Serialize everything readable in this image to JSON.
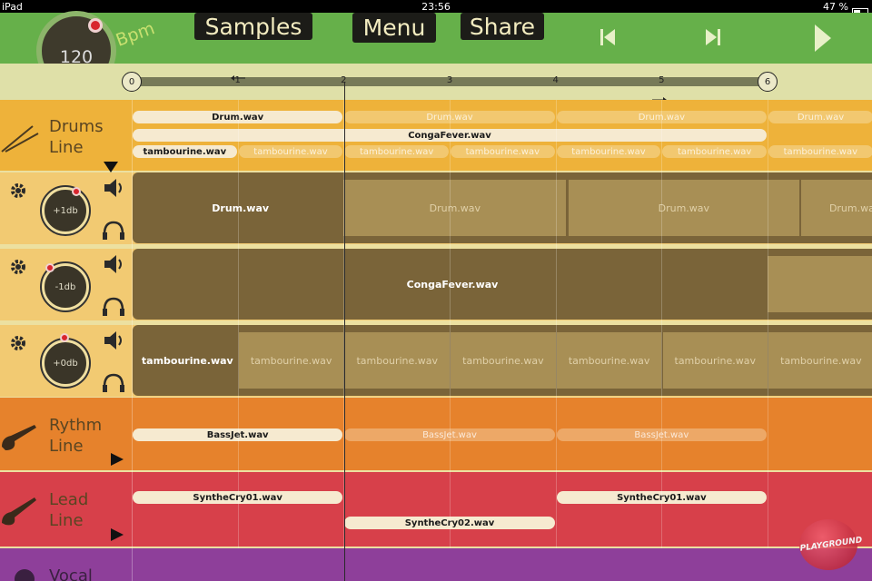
{
  "status_bar": {
    "device": "iPad",
    "time": "23:56",
    "battery": "47 %"
  },
  "toolbar": {
    "tempo": "120",
    "tempo_unit": "Bpm",
    "buttons": [
      "Samples",
      "Menu",
      "Share"
    ]
  },
  "timeline": {
    "marks": [
      "0",
      "1",
      "2",
      "3",
      "4",
      "5",
      "6"
    ]
  },
  "drums": {
    "title": [
      "Drums",
      "Line"
    ],
    "lanes": [
      [
        "Drum.wav",
        "Drum.wav",
        "Drum.wav",
        "Drum.wav"
      ],
      [
        "CongaFever.wav"
      ],
      [
        "tambourine.wav",
        "tambourine.wav",
        "tambourine.wav",
        "tambourine.wav",
        "tambourine.wav",
        "tambourine.wav",
        "tambourine.wav"
      ]
    ]
  },
  "channels": [
    {
      "gain": "+1db",
      "clips": [
        "Drum.wav",
        "Drum.wav",
        "Drum.wav",
        "Drum.wav"
      ]
    },
    {
      "gain": "-1db",
      "clips": [
        "CongaFever.wav"
      ]
    },
    {
      "gain": "+0db",
      "clips": [
        "tambourine.wav",
        "tambourine.wav",
        "tambourine.wav",
        "tambourine.wav",
        "tambourine.wav",
        "tambourine.wav",
        "tambourine.wav"
      ]
    }
  ],
  "rhythm": {
    "title": [
      "Rythm",
      "Line"
    ],
    "clips": [
      "BassJet.wav",
      "BassJet.wav",
      "BassJet.wav"
    ]
  },
  "lead": {
    "title": [
      "Lead",
      "Line"
    ],
    "clips": [
      "SyntheCry01.wav",
      "SyntheCry02.wav",
      "SyntheCry01.wav"
    ]
  },
  "vocal": {
    "title": "Vocal"
  },
  "watermark": "PLAYGROUND"
}
